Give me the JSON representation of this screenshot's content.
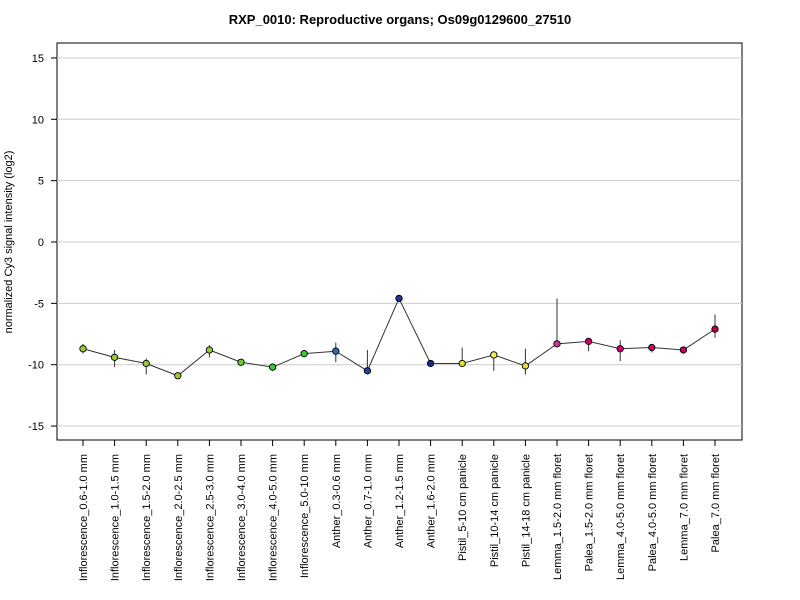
{
  "title": "RXP_0010: Reproductive organs; Os09g0129600_27510",
  "chart_data": {
    "type": "scatter",
    "title": "RXP_0010: Reproductive organs; Os09g0129600_27510",
    "xlabel": "",
    "ylabel": "normalized Cy3 signal intensity (log2)",
    "ylim": [
      -16.2,
      16.2
    ],
    "yticks": [
      15,
      10,
      5,
      0,
      -5,
      -10,
      -15
    ],
    "ytick_labels": [
      "15",
      "10",
      "5",
      "0",
      "-5",
      "-10",
      "-15"
    ],
    "grid": true,
    "connected": true,
    "categories": [
      "Inflorescence_0.6-1.0 mm",
      "Inflorescence_1.0-1.5 mm",
      "Inflorescence_1.5-2.0 mm",
      "Inflorescence_2.0-2.5 mm",
      "Inflorescence_2.5-3.0 mm",
      "Inflorescence_3.0-4.0 mm",
      "Inflorescence_4.0-5.0 mm",
      "Inflorescence_5.0-10 mm",
      "Anther_0.3-0.6 mm",
      "Anther_0.7-1.0 mm",
      "Anther_1.2-1.5 mm",
      "Anther_1.6-2.0 mm",
      "Pistil_5-10 cm panicle",
      "Pistil_10-14 cm panicle",
      "Pistil_14-18 cm panicle",
      "Lemma_1.5-2.0 mm floret",
      "Palea_1.5-2.0 mm floret",
      "Lemma_4.0-5.0 mm floret",
      "Palea_4.0-5.0 mm floret",
      "Lemma_7.0 mm floret",
      "Palea_7.0 mm floret"
    ],
    "values": [
      -8.7,
      -9.4,
      -9.9,
      -10.9,
      -8.8,
      -9.8,
      -10.2,
      -9.1,
      -8.9,
      -10.5,
      -4.6,
      -9.9,
      -9.9,
      -9.2,
      -10.1,
      -8.3,
      -8.1,
      -8.7,
      -8.6,
      -8.8,
      -7.1
    ],
    "err_low": [
      -9.1,
      -10.2,
      -10.8,
      -11.0,
      -9.4,
      -9.9,
      -10.5,
      -9.2,
      -9.8,
      -10.6,
      -4.7,
      -10.0,
      -10.1,
      -10.5,
      -10.8,
      -8.4,
      -8.9,
      -9.7,
      -9.0,
      -9.1,
      -7.8
    ],
    "err_high": [
      -8.3,
      -8.8,
      -9.5,
      -10.8,
      -8.4,
      -9.7,
      -9.9,
      -9.0,
      -8.2,
      -8.8,
      -4.5,
      -9.8,
      -8.6,
      -9.0,
      -8.7,
      -4.6,
      -7.9,
      -8.0,
      -8.3,
      -8.6,
      -5.9
    ],
    "point_colors": [
      "#99cc33",
      "#99cc33",
      "#99cc33",
      "#99cc33",
      "#99cc33",
      "#66cc33",
      "#33cc33",
      "#33cc33",
      "#3366cc",
      "#2244aa",
      "#223399",
      "#1a2a88",
      "#dddd33",
      "#eeee55",
      "#dddd33",
      "#cc3399",
      "#cc0066",
      "#cc0066",
      "#cc0066",
      "#cc0066",
      "#bb0044"
    ],
    "line_color": "#333333",
    "grid_color": "#cccccc"
  }
}
